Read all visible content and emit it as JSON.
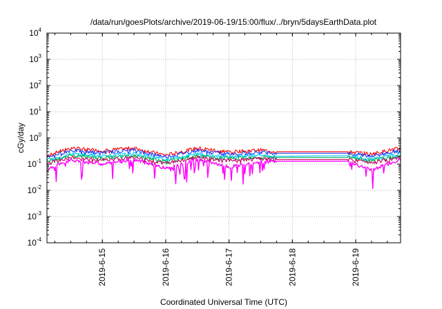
{
  "chart_data": {
    "type": "line",
    "title": "/data/run/goesPlots/archive/2019-06-19/15:00/flux/../bryn/5daysEarthData.plot",
    "xlabel": "Coordinated Universal Time (UTC)",
    "ylabel": "cGy/day",
    "yscale": "log",
    "ylim": [
      0.0001,
      10000
    ],
    "xlim": [
      "2019-06-14 03:00",
      "2019-06-19 17:00"
    ],
    "y_ticks": [
      {
        "base": "10",
        "exp": "-4",
        "value": 0.0001
      },
      {
        "base": "10",
        "exp": "-3",
        "value": 0.001
      },
      {
        "base": "10",
        "exp": "-2",
        "value": 0.01
      },
      {
        "base": "10",
        "exp": "-1",
        "value": 0.1
      },
      {
        "base": "10",
        "exp": "0",
        "value": 1
      },
      {
        "base": "10",
        "exp": "1",
        "value": 10
      },
      {
        "base": "10",
        "exp": "2",
        "value": 100
      },
      {
        "base": "10",
        "exp": "3",
        "value": 1000
      },
      {
        "base": "10",
        "exp": "4",
        "value": 10000
      }
    ],
    "x_ticks": [
      {
        "label": "2019-6-15",
        "value": "2019-06-15 00:00"
      },
      {
        "label": "2019-6-16",
        "value": "2019-06-16 00:00"
      },
      {
        "label": "2019-6-17",
        "value": "2019-06-17 00:00"
      },
      {
        "label": "2019-6-18",
        "value": "2019-06-18 00:00"
      },
      {
        "label": "2019-6-19",
        "value": "2019-06-19 00:00"
      }
    ],
    "grid": true,
    "data_gap": [
      "2019-06-17 18:00",
      "2019-06-18 21:00"
    ],
    "series": [
      {
        "color": "#ff0000",
        "x": [
          "2019-06-14 03:00",
          "2019-06-14 12:00",
          "2019-06-15 00:00",
          "2019-06-15 12:00",
          "2019-06-16 00:00",
          "2019-06-16 12:00",
          "2019-06-17 00:00",
          "2019-06-17 12:00",
          "2019-06-17 18:00",
          "2019-06-18 21:00",
          "2019-06-19 06:00",
          "2019-06-19 17:00"
        ],
        "y": [
          0.22,
          0.42,
          0.33,
          0.42,
          0.22,
          0.42,
          0.3,
          0.35,
          0.3,
          0.3,
          0.25,
          0.42
        ]
      },
      {
        "color": "#1a3dff",
        "x": [
          "2019-06-14 03:00",
          "2019-06-14 12:00",
          "2019-06-15 00:00",
          "2019-06-15 12:00",
          "2019-06-16 00:00",
          "2019-06-16 12:00",
          "2019-06-17 00:00",
          "2019-06-17 12:00",
          "2019-06-17 18:00",
          "2019-06-18 21:00",
          "2019-06-19 06:00",
          "2019-06-19 17:00"
        ],
        "y": [
          0.19,
          0.34,
          0.28,
          0.35,
          0.19,
          0.34,
          0.25,
          0.3,
          0.26,
          0.26,
          0.21,
          0.34
        ]
      },
      {
        "color": "#00c8ff",
        "x": [
          "2019-06-14 03:00",
          "2019-06-14 12:00",
          "2019-06-15 00:00",
          "2019-06-15 12:00",
          "2019-06-16 00:00",
          "2019-06-16 12:00",
          "2019-06-17 00:00",
          "2019-06-17 12:00",
          "2019-06-17 18:00",
          "2019-06-18 21:00",
          "2019-06-19 06:00",
          "2019-06-19 17:00"
        ],
        "y": [
          0.15,
          0.25,
          0.21,
          0.25,
          0.15,
          0.25,
          0.2,
          0.22,
          0.2,
          0.21,
          0.16,
          0.25
        ]
      },
      {
        "color": "#00b050",
        "x": [
          "2019-06-14 03:00",
          "2019-06-14 12:00",
          "2019-06-15 00:00",
          "2019-06-15 12:00",
          "2019-06-16 00:00",
          "2019-06-16 12:00",
          "2019-06-17 00:00",
          "2019-06-17 12:00",
          "2019-06-17 18:00",
          "2019-06-18 21:00",
          "2019-06-19 06:00",
          "2019-06-19 17:00"
        ],
        "y": [
          0.13,
          0.21,
          0.18,
          0.21,
          0.13,
          0.21,
          0.17,
          0.19,
          0.18,
          0.18,
          0.14,
          0.21
        ]
      },
      {
        "color": "#c0005a",
        "x": [
          "2019-06-14 03:00",
          "2019-06-14 12:00",
          "2019-06-15 00:00",
          "2019-06-15 12:00",
          "2019-06-16 00:00",
          "2019-06-16 12:00",
          "2019-06-17 00:00",
          "2019-06-17 12:00",
          "2019-06-17 18:00",
          "2019-06-18 21:00",
          "2019-06-19 06:00",
          "2019-06-19 17:00"
        ],
        "y": [
          0.11,
          0.18,
          0.15,
          0.18,
          0.11,
          0.18,
          0.14,
          0.16,
          0.15,
          0.15,
          0.12,
          0.18
        ]
      },
      {
        "color": "#ff00ff",
        "x": [
          "2019-06-14 03:00",
          "2019-06-14 12:00",
          "2019-06-15 00:00",
          "2019-06-15 12:00",
          "2019-06-16 00:00",
          "2019-06-16 12:00",
          "2019-06-17 00:00",
          "2019-06-17 12:00",
          "2019-06-17 18:00",
          "2019-06-18 21:00",
          "2019-06-19 06:00",
          "2019-06-19 17:00"
        ],
        "y": [
          0.06,
          0.15,
          0.1,
          0.15,
          0.07,
          0.15,
          0.08,
          0.12,
          0.13,
          0.13,
          0.06,
          0.15
        ]
      }
    ]
  }
}
